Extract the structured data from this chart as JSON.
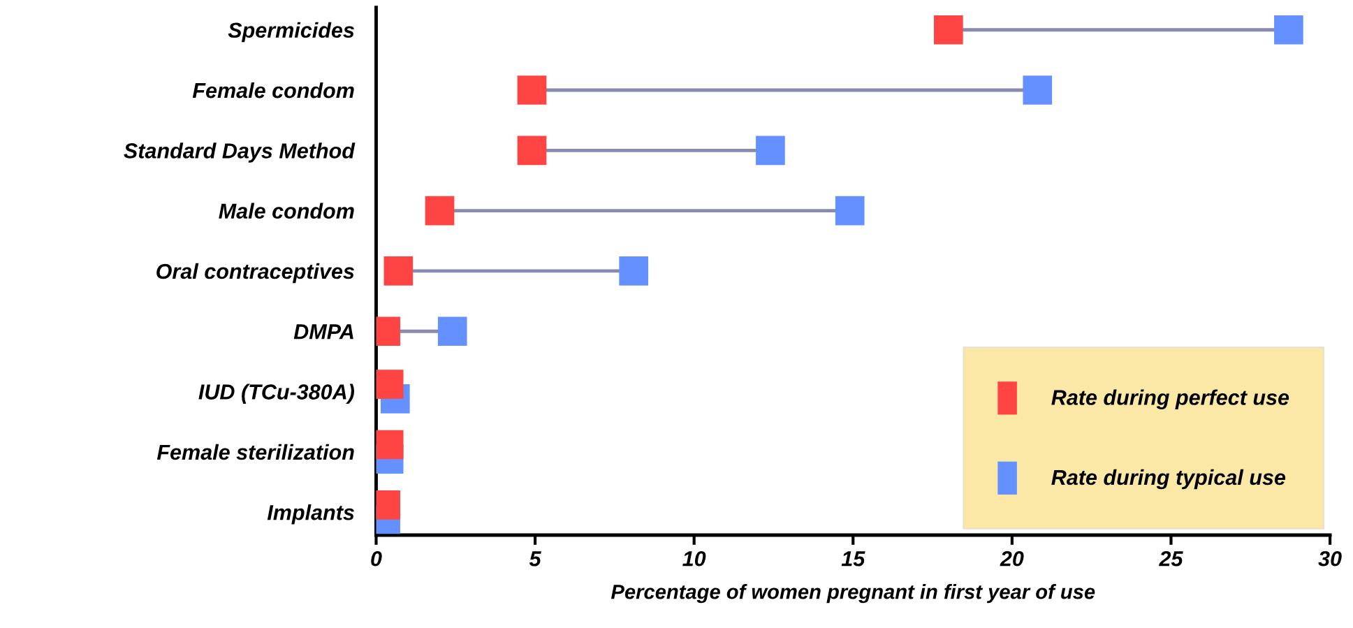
{
  "chart_data": {
    "type": "scatter",
    "orientation": "horizontal",
    "marker": "square",
    "categories": [
      "Spermicides",
      "Female condom",
      "Standard Days Method",
      "Male condom",
      "Oral contraceptives",
      "DMPA",
      "IUD (TCu-380A)",
      "Female sterilization",
      "Implants"
    ],
    "series": [
      {
        "name": "Rate during perfect use",
        "color": "#ff4444",
        "values": [
          18.0,
          4.9,
          4.9,
          2.0,
          0.7,
          0.3,
          0.4,
          0.4,
          0.3
        ]
      },
      {
        "name": "Rate during typical use",
        "color": "#6491ff",
        "values": [
          28.7,
          20.8,
          12.4,
          14.9,
          8.1,
          2.4,
          0.6,
          0.4,
          0.3
        ]
      }
    ],
    "xlabel": "Percentage of women pregnant in first year of use",
    "xlim": [
      0,
      30
    ],
    "xticks": [
      0,
      5,
      10,
      15,
      20,
      25,
      30
    ],
    "grid": false,
    "legend": "bottom right"
  }
}
